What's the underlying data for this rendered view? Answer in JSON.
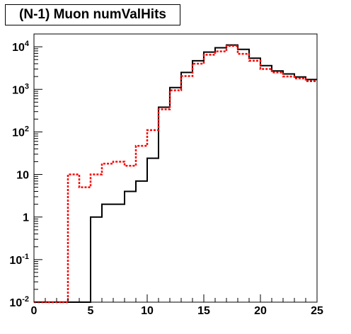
{
  "chart_data": {
    "type": "histogram",
    "title": "(N-1) Muon numValHits",
    "xlabel": "",
    "ylabel": "",
    "xlim": [
      0,
      25
    ],
    "ylim": [
      0.01,
      20000
    ],
    "yscale": "log",
    "grid": false,
    "legend": "none",
    "x_ticks": [
      {
        "value": 0,
        "label": "0"
      },
      {
        "value": 5,
        "label": "5"
      },
      {
        "value": 10,
        "label": "10"
      },
      {
        "value": 15,
        "label": "15"
      },
      {
        "value": 20,
        "label": "20"
      },
      {
        "value": 25,
        "label": "25"
      }
    ],
    "y_ticks": [
      {
        "value": 0.01,
        "base": "10",
        "exp": "-2"
      },
      {
        "value": 0.1,
        "base": "10",
        "exp": "-1"
      },
      {
        "value": 1,
        "base": "1",
        "exp": ""
      },
      {
        "value": 10,
        "base": "10",
        "exp": ""
      },
      {
        "value": 100,
        "base": "10",
        "exp": "2"
      },
      {
        "value": 1000,
        "base": "10",
        "exp": "3"
      },
      {
        "value": 10000,
        "base": "10",
        "exp": "4"
      }
    ],
    "bin_edges": [
      0,
      1,
      2,
      3,
      4,
      5,
      6,
      7,
      8,
      9,
      10,
      11,
      12,
      13,
      14,
      15,
      16,
      17,
      18,
      19,
      20,
      21,
      22,
      23,
      24,
      25
    ],
    "series": [
      {
        "style": "solid",
        "color": "#000000",
        "values": [
          0.01,
          0.01,
          0.01,
          0.01,
          0.01,
          1,
          2,
          2,
          4,
          7,
          24,
          380,
          1100,
          2500,
          4700,
          7500,
          9500,
          11000,
          8700,
          5400,
          3600,
          2700,
          2300,
          1950,
          1700
        ]
      },
      {
        "style": "dashed",
        "color": "#ff0000",
        "values": [
          0.01,
          0.01,
          0.01,
          10,
          5,
          10,
          18,
          20,
          16,
          47,
          110,
          340,
          950,
          2050,
          4000,
          6500,
          7800,
          10500,
          6800,
          4700,
          3000,
          2500,
          2000,
          1800,
          1550
        ]
      }
    ]
  }
}
